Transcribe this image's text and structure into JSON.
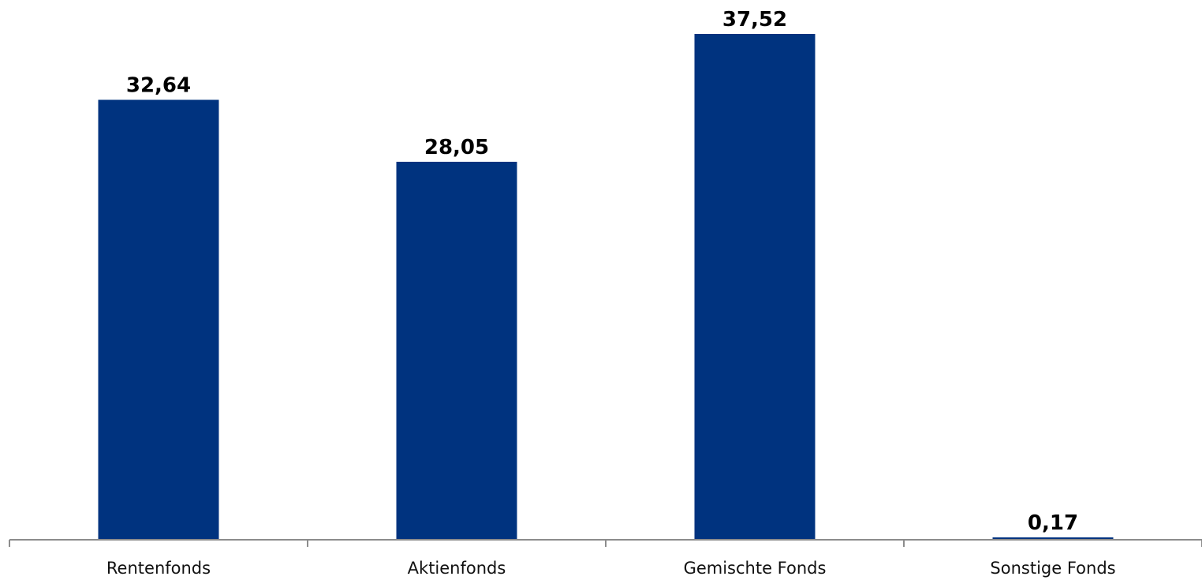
{
  "chart_data": {
    "type": "bar",
    "categories": [
      "Rentenfonds",
      "Aktienfonds",
      "Gemischte Fonds",
      "Sonstige Fonds"
    ],
    "values": [
      32.64,
      28.05,
      37.52,
      0.17
    ],
    "value_labels": [
      "32,64",
      "28,05",
      "37,52",
      "0,17"
    ],
    "title": "",
    "xlabel": "",
    "ylabel": "",
    "ylim": [
      0,
      37.52
    ],
    "grid": false,
    "legend": "none",
    "bar_color": "#00337F",
    "axis_color": "#8c8c8c"
  }
}
